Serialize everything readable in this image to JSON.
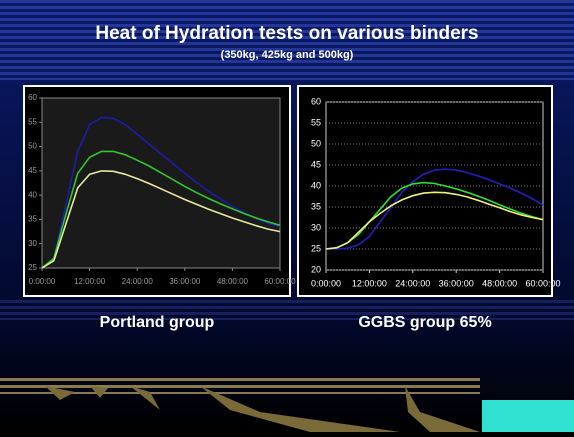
{
  "slide": {
    "title": "Heat of Hydration tests on various binders",
    "subtitle": "(350kg, 425kg and 500kg)"
  },
  "chart_data": [
    {
      "type": "line",
      "title": "Portland group",
      "grid": false,
      "xlim": [
        0,
        60
      ],
      "xticks": [
        {
          "value": 0,
          "label": "0:00:00"
        },
        {
          "value": 12,
          "label": "12:00:00"
        },
        {
          "value": 24,
          "label": "24:00:00"
        },
        {
          "value": 36,
          "label": "36:00:00"
        },
        {
          "value": 48,
          "label": "48:00:00"
        },
        {
          "value": 60,
          "label": "60:00:00"
        }
      ],
      "ylim": [
        25,
        60
      ],
      "yticks": [
        25,
        30,
        35,
        40,
        45,
        50,
        55,
        60
      ],
      "x": [
        0,
        3,
        6,
        9,
        12,
        15,
        18,
        21,
        24,
        27,
        30,
        33,
        36,
        39,
        42,
        45,
        48,
        51,
        54,
        57,
        60
      ],
      "series": [
        {
          "color": "#1c1ca8",
          "values": [
            25,
            27,
            38,
            49,
            54.5,
            56,
            55.8,
            54.5,
            52.5,
            50.5,
            48.5,
            46.5,
            44.5,
            42.6,
            40.8,
            39.2,
            37.7,
            36.4,
            35.2,
            34.2,
            33.5
          ]
        },
        {
          "color": "#2ec82e",
          "values": [
            25,
            27,
            36,
            44.5,
            47.8,
            49,
            49,
            48.3,
            47.2,
            46,
            44.6,
            43.2,
            41.8,
            40.5,
            39.3,
            38.2,
            37.2,
            36.2,
            35.3,
            34.5,
            33.8
          ]
        },
        {
          "color": "#e8e8a0",
          "values": [
            25,
            26.5,
            34,
            41.5,
            44.3,
            45,
            44.9,
            44.3,
            43.4,
            42.4,
            41.3,
            40.2,
            39.1,
            38.1,
            37.1,
            36.2,
            35.3,
            34.5,
            33.7,
            33,
            32.5
          ]
        }
      ]
    },
    {
      "type": "line",
      "title": "GGBS group 65%",
      "grid": true,
      "xlim": [
        0,
        60
      ],
      "xticks": [
        {
          "value": 0,
          "label": "0:00:00"
        },
        {
          "value": 12,
          "label": "12:00:00"
        },
        {
          "value": 24,
          "label": "24:00:00"
        },
        {
          "value": 36,
          "label": "36:00:00"
        },
        {
          "value": 48,
          "label": "48:00:00"
        },
        {
          "value": 60,
          "label": "60:00:00"
        }
      ],
      "ylim": [
        20,
        60
      ],
      "yticks": [
        20,
        25,
        30,
        35,
        40,
        45,
        50,
        55,
        60
      ],
      "x": [
        0,
        3,
        6,
        9,
        12,
        15,
        18,
        21,
        24,
        27,
        30,
        33,
        36,
        39,
        42,
        45,
        48,
        51,
        54,
        57,
        60
      ],
      "series": [
        {
          "color": "#2020c0",
          "values": [
            25,
            25,
            25.2,
            26,
            28,
            31.5,
            35,
            38.5,
            41,
            42.8,
            43.8,
            44,
            43.8,
            43.2,
            42.4,
            41.5,
            40.5,
            39.5,
            38.3,
            37,
            35.5
          ]
        },
        {
          "color": "#30e030",
          "values": [
            25,
            25.3,
            26.5,
            28.5,
            31.5,
            34.5,
            37.5,
            39.5,
            40.5,
            40.8,
            40.6,
            40,
            39.3,
            38.5,
            37.6,
            36.6,
            35.5,
            34.5,
            33.5,
            32.7,
            32
          ]
        },
        {
          "color": "#f0f080",
          "values": [
            25,
            25.3,
            26.5,
            29,
            31.5,
            33.5,
            35.3,
            36.7,
            37.7,
            38.3,
            38.5,
            38.4,
            38,
            37.4,
            36.6,
            35.7,
            34.8,
            33.9,
            33.1,
            32.5,
            32
          ]
        }
      ]
    }
  ]
}
